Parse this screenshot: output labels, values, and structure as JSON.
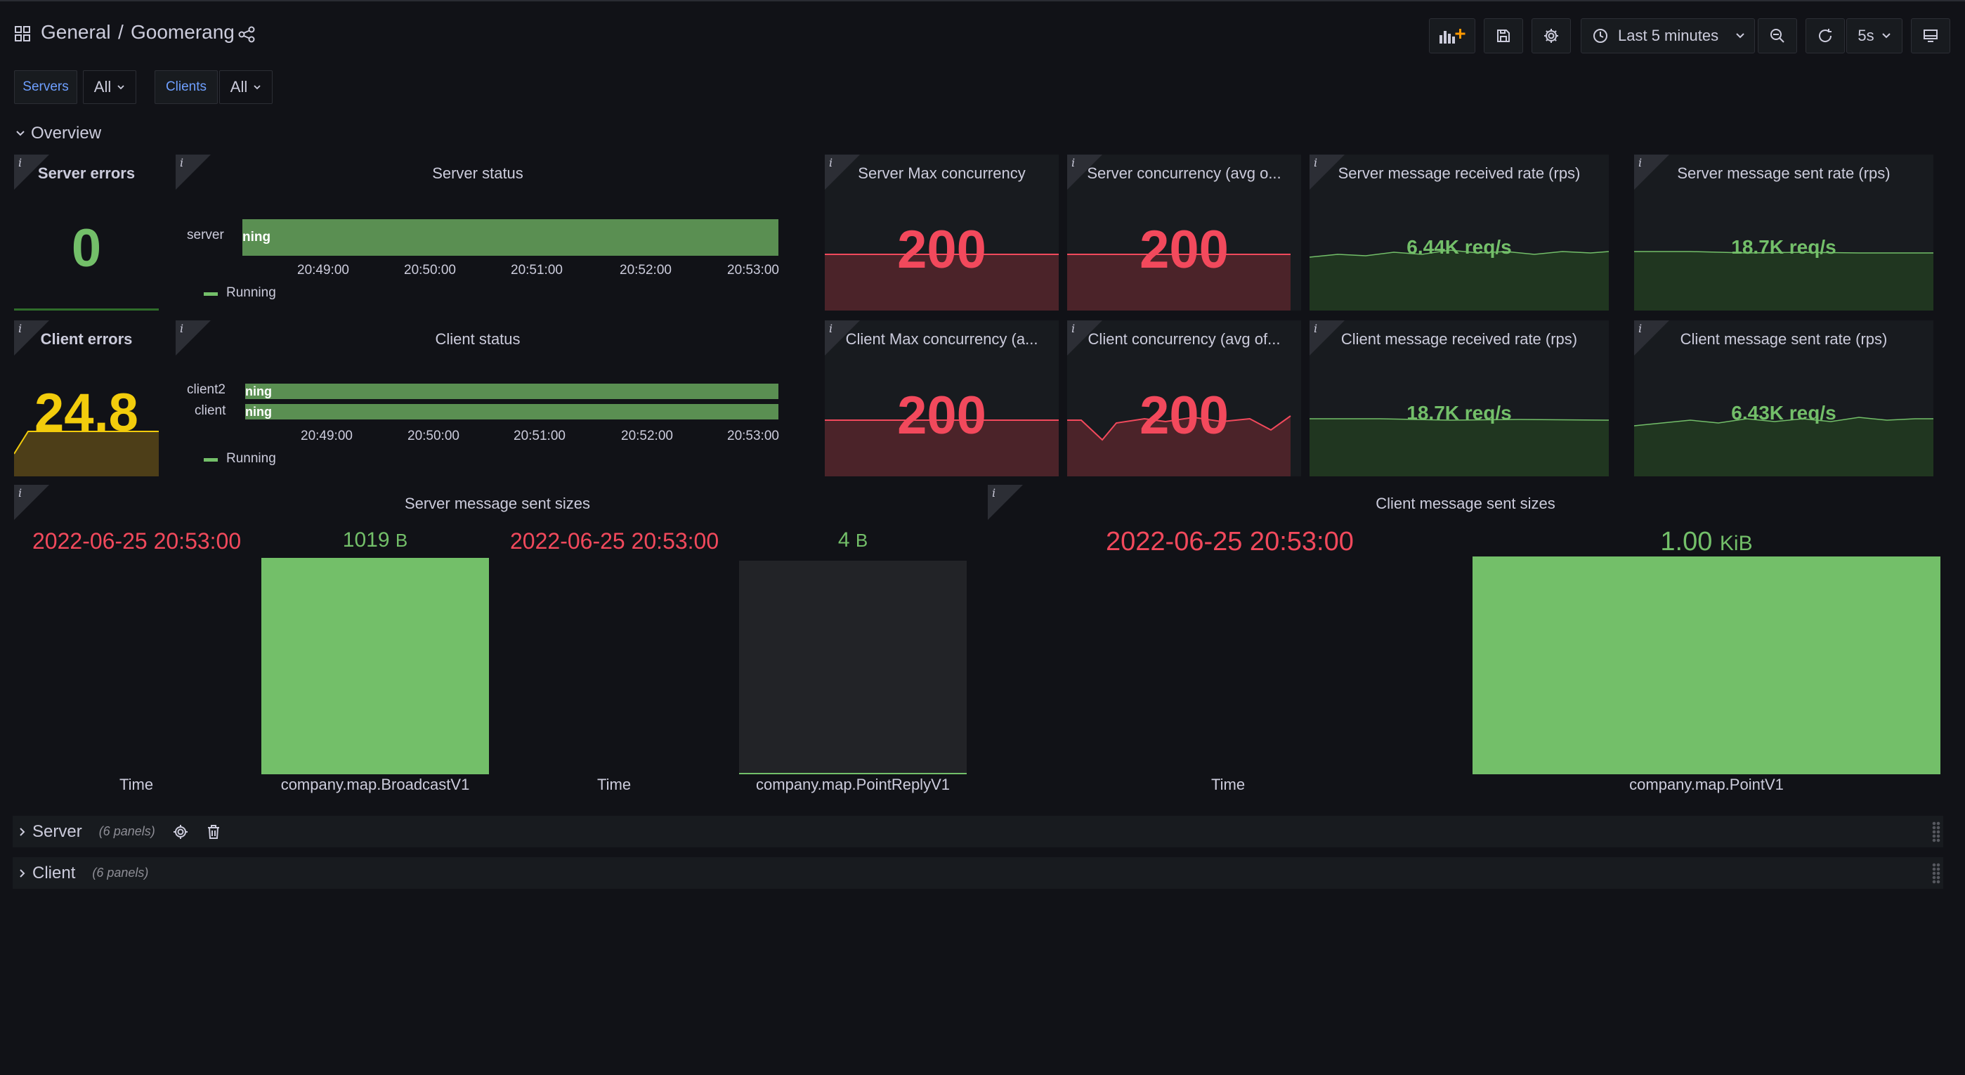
{
  "header": {
    "folder": "General",
    "separator": "/",
    "dashboard": "Goomerang",
    "time_range": "Last 5 minutes",
    "refresh_interval": "5s"
  },
  "variables": [
    {
      "label": "Servers",
      "value": "All"
    },
    {
      "label": "Clients",
      "value": "All"
    }
  ],
  "overview_row": {
    "title": "Overview"
  },
  "panels": {
    "server_errors": {
      "title": "Server errors",
      "value": "0",
      "color": "#73bf69"
    },
    "client_errors": {
      "title": "Client errors",
      "value": "24.8",
      "color": "#f2cc0c"
    },
    "server_status": {
      "title": "Server status",
      "rows": [
        {
          "name": "server",
          "bar_text": "ning"
        }
      ],
      "ticks": [
        "20:49:00",
        "20:50:00",
        "20:51:00",
        "20:52:00",
        "20:53:00"
      ],
      "legend": "Running"
    },
    "client_status": {
      "title": "Client status",
      "rows": [
        {
          "name": "client2",
          "bar_text": "ning"
        },
        {
          "name": "client",
          "bar_text": "ning"
        }
      ],
      "ticks": [
        "20:49:00",
        "20:50:00",
        "20:51:00",
        "20:52:00",
        "20:53:00"
      ],
      "legend": "Running"
    },
    "server_max_concurrency": {
      "title": "Server Max concurrency",
      "value": "200"
    },
    "server_concurrency_avg": {
      "title": "Server concurrency (avg o...",
      "value": "200"
    },
    "server_msg_received_rate": {
      "title": "Server message received rate (rps)",
      "value": "6.44K req/s"
    },
    "server_msg_sent_rate": {
      "title": "Server message sent rate (rps)",
      "value": "18.7K req/s"
    },
    "client_max_concurrency": {
      "title": "Client Max concurrency (a...",
      "value": "200"
    },
    "client_concurrency_avg": {
      "title": "Client concurrency (avg of...",
      "value": "200"
    },
    "client_msg_received_rate": {
      "title": "Client message received rate (rps)",
      "value": "18.7K req/s"
    },
    "client_msg_sent_rate": {
      "title": "Client message sent rate (rps)",
      "value": "6.43K req/s"
    },
    "server_msg_sizes": {
      "title": "Server message sent sizes",
      "time_value_1": "2022-06-25 20:53:00",
      "time_label_1": "Time",
      "bar1_value": "1019",
      "bar1_unit": "B",
      "bar1_label": "company.map.BroadcastV1",
      "time_value_2": "2022-06-25 20:53:00",
      "time_label_2": "Time",
      "bar2_value": "4",
      "bar2_unit": "B",
      "bar2_label": "company.map.PointReplyV1"
    },
    "client_msg_sizes": {
      "title": "Client message sent sizes",
      "time_value": "2022-06-25 20:53:00",
      "time_label": "Time",
      "bar_value": "1.00",
      "bar_unit": "KiB",
      "bar_label": "company.map.PointV1"
    }
  },
  "collapsed_rows": [
    {
      "title": "Server",
      "count": "(6 panels)"
    },
    {
      "title": "Client",
      "count": "(6 panels)"
    }
  ],
  "colors": {
    "background": "#111217",
    "panel": "#181b1f",
    "green": "#73bf69",
    "red": "#f2495c",
    "yellow": "#f2cc0c",
    "blue_link": "#6e9fff"
  }
}
